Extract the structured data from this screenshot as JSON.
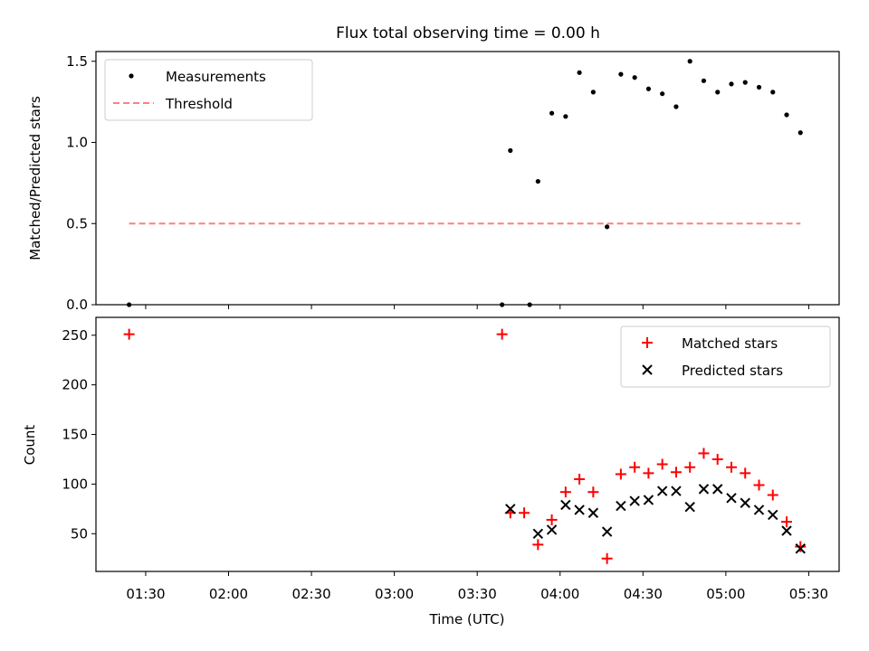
{
  "chart_data": [
    {
      "type": "scatter",
      "title": "Flux total observing time = 0.00 h",
      "xlabel": "",
      "ylabel": "Matched/Predicted stars",
      "ylim": [
        0,
        1.56
      ],
      "xlim_minutes_utc": [
        72,
        341
      ],
      "yticks": [
        {
          "value": 0.0,
          "label": "0.0"
        },
        {
          "value": 0.5,
          "label": "0.5"
        },
        {
          "value": 1.0,
          "label": "1.0"
        },
        {
          "value": 1.5,
          "label": "1.5"
        }
      ],
      "legend_position": "top-left",
      "series": [
        {
          "name": "Measurements",
          "marker": "dot",
          "color": "#000000",
          "points": [
            [
              84,
              0.0
            ],
            [
              219,
              0.0
            ],
            [
              222,
              0.95
            ],
            [
              229,
              0.0
            ],
            [
              232,
              0.76
            ],
            [
              237,
              1.18
            ],
            [
              242,
              1.16
            ],
            [
              247,
              1.43
            ],
            [
              252,
              1.31
            ],
            [
              257,
              0.48
            ],
            [
              262,
              1.42
            ],
            [
              267,
              1.4
            ],
            [
              272,
              1.33
            ],
            [
              277,
              1.3
            ],
            [
              282,
              1.22
            ],
            [
              287,
              1.5
            ],
            [
              292,
              1.38
            ],
            [
              297,
              1.31
            ],
            [
              302,
              1.36
            ],
            [
              307,
              1.37
            ],
            [
              312,
              1.34
            ],
            [
              317,
              1.31
            ],
            [
              322,
              1.17
            ],
            [
              327,
              1.06
            ]
          ]
        },
        {
          "name": "Threshold",
          "marker": "dashed-line",
          "color": "#ff7f7f",
          "points": [
            [
              84,
              0.5
            ],
            [
              327,
              0.5
            ]
          ]
        }
      ]
    },
    {
      "type": "scatter",
      "title": "",
      "xlabel": "Time (UTC)",
      "ylabel": "Count",
      "ylim": [
        12,
        268
      ],
      "xlim_minutes_utc": [
        72,
        341
      ],
      "yticks": [
        {
          "value": 50,
          "label": "50"
        },
        {
          "value": 100,
          "label": "100"
        },
        {
          "value": 150,
          "label": "150"
        },
        {
          "value": 200,
          "label": "200"
        },
        {
          "value": 250,
          "label": "250"
        }
      ],
      "xticks": [
        {
          "value": 90,
          "label": "01:30"
        },
        {
          "value": 120,
          "label": "02:00"
        },
        {
          "value": 150,
          "label": "02:30"
        },
        {
          "value": 180,
          "label": "03:00"
        },
        {
          "value": 210,
          "label": "03:30"
        },
        {
          "value": 240,
          "label": "04:00"
        },
        {
          "value": 270,
          "label": "04:30"
        },
        {
          "value": 300,
          "label": "05:00"
        },
        {
          "value": 330,
          "label": "05:30"
        }
      ],
      "legend_position": "top-right",
      "series": [
        {
          "name": "Matched stars",
          "marker": "plus",
          "color": "#ff0000",
          "points": [
            [
              84,
              251
            ],
            [
              219,
              251
            ],
            [
              222,
              71
            ],
            [
              227,
              71
            ],
            [
              232,
              39
            ],
            [
              237,
              64
            ],
            [
              242,
              92
            ],
            [
              247,
              105
            ],
            [
              252,
              92
            ],
            [
              257,
              25
            ],
            [
              262,
              110
            ],
            [
              267,
              117
            ],
            [
              272,
              111
            ],
            [
              277,
              120
            ],
            [
              282,
              112
            ],
            [
              287,
              117
            ],
            [
              292,
              131
            ],
            [
              297,
              125
            ],
            [
              302,
              117
            ],
            [
              307,
              111
            ],
            [
              312,
              99
            ],
            [
              317,
              89
            ],
            [
              322,
              62
            ],
            [
              327,
              37
            ]
          ]
        },
        {
          "name": "Predicted stars",
          "marker": "x",
          "color": "#000000",
          "points": [
            [
              222,
              75
            ],
            [
              232,
              50
            ],
            [
              237,
              54
            ],
            [
              242,
              79
            ],
            [
              247,
              74
            ],
            [
              252,
              71
            ],
            [
              257,
              52
            ],
            [
              262,
              78
            ],
            [
              267,
              83
            ],
            [
              272,
              84
            ],
            [
              277,
              93
            ],
            [
              282,
              93
            ],
            [
              287,
              77
            ],
            [
              292,
              95
            ],
            [
              297,
              95
            ],
            [
              302,
              86
            ],
            [
              307,
              81
            ],
            [
              312,
              74
            ],
            [
              317,
              69
            ],
            [
              322,
              53
            ],
            [
              327,
              35
            ]
          ]
        }
      ]
    }
  ]
}
